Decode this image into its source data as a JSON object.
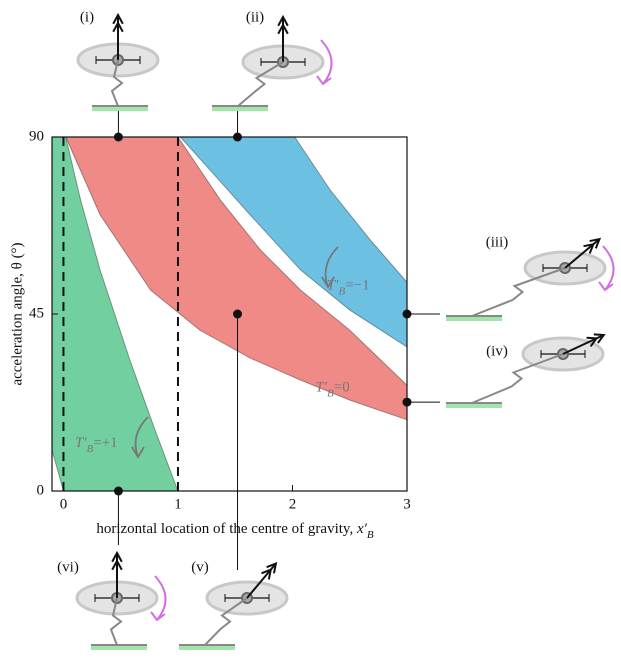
{
  "chart_data": {
    "type": "region",
    "ylabel": "acceleration angle, θ (°)",
    "xlabel": {
      "text": "horizontal location of the centre of gravity, ",
      "var": "x′",
      "sub": "B"
    },
    "xlim": [
      -0.1,
      3
    ],
    "ylim": [
      0,
      90
    ],
    "xticks": [
      0,
      1,
      2,
      3
    ],
    "yticks": [
      0,
      45,
      90
    ],
    "dashed_x": [
      0,
      1
    ],
    "series": [
      {
        "color": "#72cfa0",
        "x": [
          -0.1,
          0.02,
          0.15,
          0.32,
          0.58,
          0.8,
          1,
          0,
          -0.1
        ],
        "y": [
          90,
          90,
          74,
          56.2,
          33.3,
          15.5,
          0,
          0,
          10.4
        ]
      },
      {
        "color": "#ef8a86",
        "x": [
          0.02,
          1,
          1.37,
          1.72,
          2.07,
          2.5,
          3,
          3,
          2.5,
          2.07,
          1.63,
          1.19,
          0.76,
          0.32
        ],
        "y": [
          90,
          90,
          74,
          61.3,
          51.1,
          40.9,
          26.9,
          18.1,
          23.1,
          28.2,
          33.8,
          40.9,
          51.1,
          70.2
        ]
      },
      {
        "color": "#6cc1e3",
        "x": [
          1.02,
          2.02,
          2.33,
          2.68,
          3,
          3,
          2.5,
          2.07,
          1.63,
          1.28
        ],
        "y": [
          90,
          90,
          76.5,
          63.8,
          53.1,
          36.6,
          46,
          56.2,
          70.2,
          81.6
        ]
      }
    ],
    "region_labels": [
      {
        "main": "T′",
        "sub": "B",
        "rest": "=+1",
        "x": 0.1,
        "y": 12
      },
      {
        "main": "T′",
        "sub": "B",
        "rest": "=0",
        "x": 2.2,
        "y": 26
      },
      {
        "main": "T′",
        "sub": "B",
        "rest": "=−1",
        "x": 2.3,
        "y": 52
      }
    ],
    "points": [
      {
        "label": "(i)",
        "x": 0.48,
        "y": 90
      },
      {
        "label": "(ii)",
        "x": 1.52,
        "y": 90
      },
      {
        "label": "(iii)",
        "x": 3,
        "y": 45
      },
      {
        "label": "(iv)",
        "x": 3,
        "y": 22.6
      },
      {
        "label": "(v)",
        "x": 1.52,
        "y": 45
      },
      {
        "label": "(vi)",
        "x": 0.48,
        "y": 0
      }
    ]
  }
}
